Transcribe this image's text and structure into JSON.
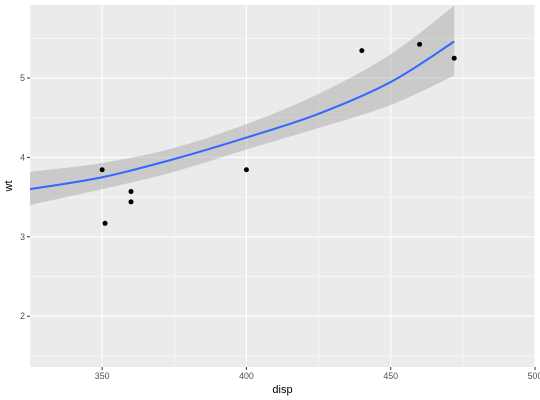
{
  "chart_data": {
    "type": "scatter",
    "title": "",
    "xlabel": "disp",
    "ylabel": "wt",
    "xlim": [
      325,
      500
    ],
    "ylim": [
      1.36,
      5.92
    ],
    "x_ticks": [
      350,
      400,
      450,
      500
    ],
    "y_ticks": [
      2,
      3,
      4,
      5
    ],
    "grid": true,
    "legend": "none",
    "points": [
      {
        "x": 350,
        "y": 3.845
      },
      {
        "x": 351,
        "y": 3.17
      },
      {
        "x": 360,
        "y": 3.57
      },
      {
        "x": 360,
        "y": 3.44
      },
      {
        "x": 400,
        "y": 3.845
      },
      {
        "x": 440,
        "y": 5.345
      },
      {
        "x": 460,
        "y": 5.424
      },
      {
        "x": 472,
        "y": 5.25
      }
    ],
    "smooth": {
      "method": "exponential fit with confidence band",
      "x": [
        325,
        350,
        375,
        400,
        425,
        450,
        472
      ],
      "y": [
        3.6,
        3.75,
        3.98,
        4.25,
        4.55,
        4.95,
        5.46
      ],
      "lower": [
        3.4,
        3.6,
        3.82,
        4.1,
        4.37,
        4.66,
        5.03
      ],
      "upper": [
        3.82,
        3.93,
        4.12,
        4.42,
        4.8,
        5.3,
        5.91
      ]
    },
    "colors": {
      "panel": "#ebebeb",
      "grid": "#ffffff",
      "line": "#3366ff",
      "band": "#999999",
      "point": "#000000"
    }
  }
}
